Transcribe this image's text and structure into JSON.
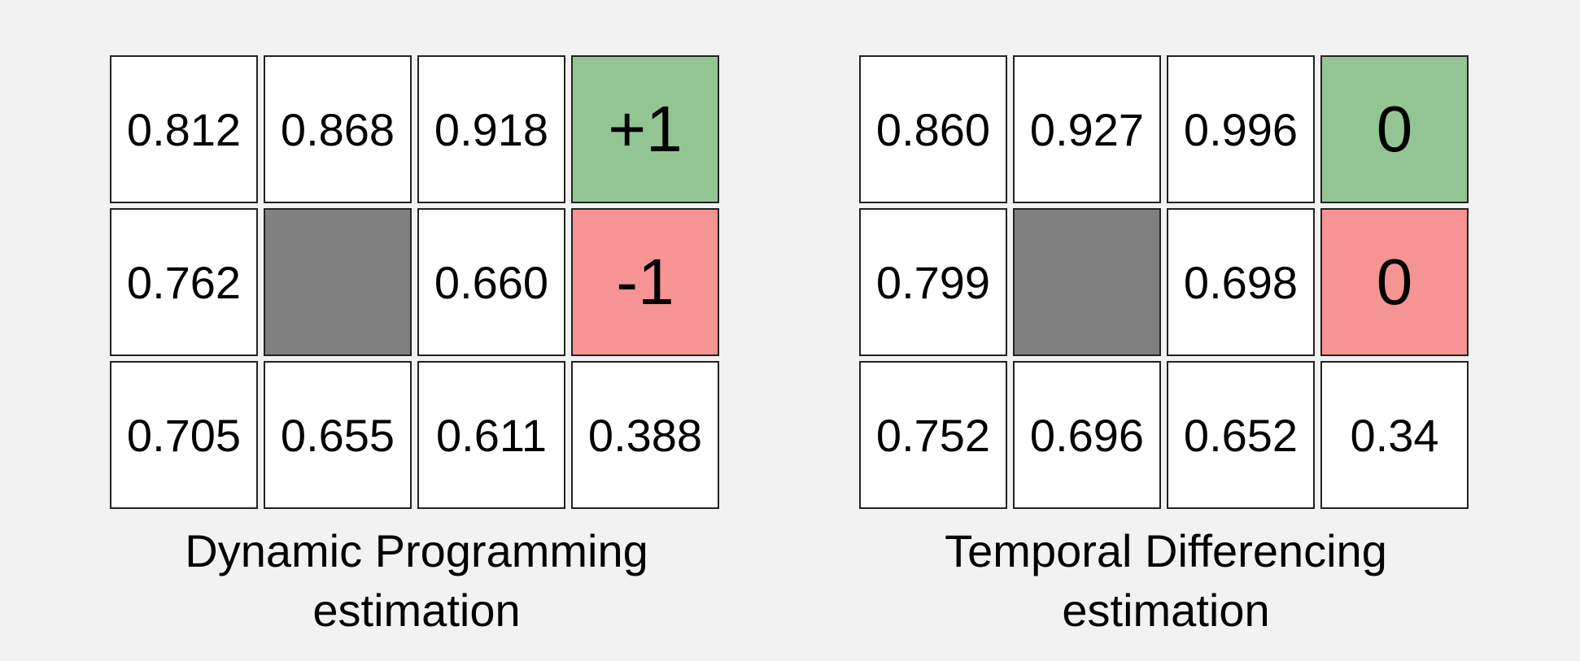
{
  "panels": [
    {
      "caption_line1": "Dynamic Programming",
      "caption_line2": "estimation",
      "rows": [
        [
          "0.812",
          "0.868",
          "0.918",
          "+1"
        ],
        [
          "0.762",
          "",
          "0.660",
          "-1"
        ],
        [
          "0.705",
          "0.655",
          "0.611",
          "0.388"
        ]
      ]
    },
    {
      "caption_line1": "Temporal Differencing",
      "caption_line2": "estimation",
      "rows": [
        [
          "0.860",
          "0.927",
          "0.996",
          "0"
        ],
        [
          "0.799",
          "",
          "0.698",
          "0"
        ],
        [
          "0.752",
          "0.696",
          "0.652",
          "0.34"
        ]
      ]
    }
  ],
  "colors": {
    "goal": "#93c593",
    "trap": "#f69393",
    "wall": "#808080",
    "background": "#f2f2f2"
  }
}
